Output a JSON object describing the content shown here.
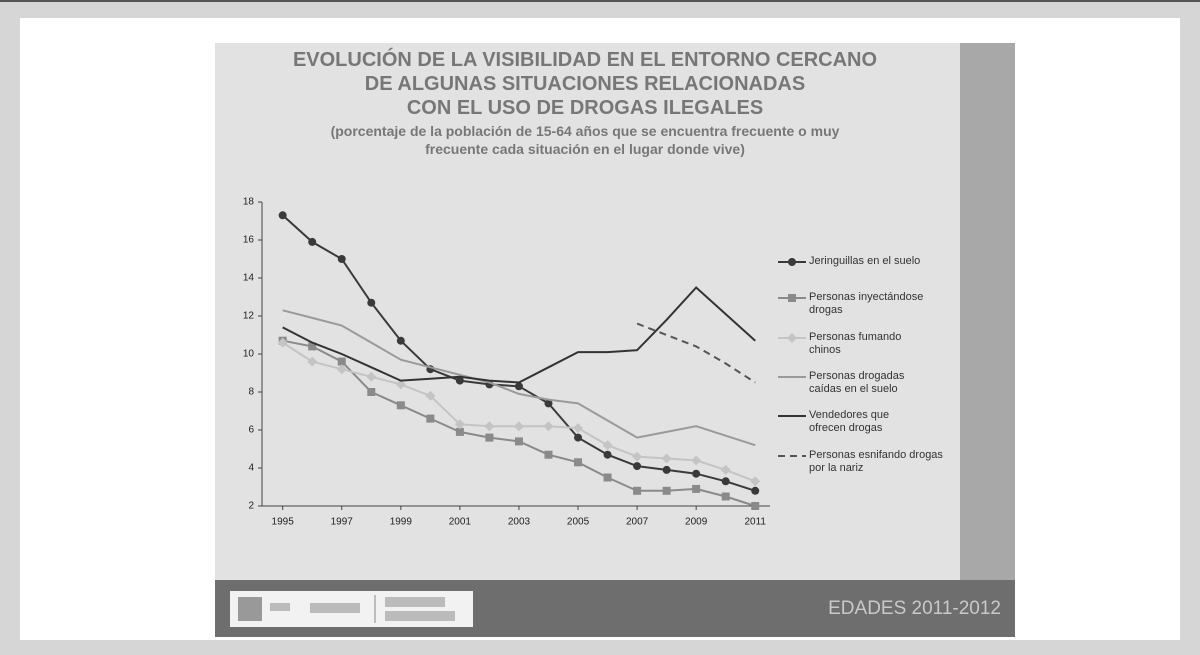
{
  "chart_data": {
    "type": "line",
    "title": [
      "EVOLUCIÓN DE LA VISIBILIDAD EN EL ENTORNO CERCANO",
      "DE ALGUNAS SITUACIONES RELACIONADAS",
      "CON EL USO DE DROGAS ILEGALES"
    ],
    "subtitle": [
      "(porcentaje de la población de 15-64 años que se encuentra frecuente o muy",
      "frecuente cada situación en el lugar donde vive)"
    ],
    "footer": "EDADES 2011-2012",
    "x": [
      1995,
      1996,
      1997,
      1998,
      1999,
      2000,
      2001,
      2002,
      2003,
      2004,
      2005,
      2006,
      2007,
      2008,
      2009,
      2010,
      2011
    ],
    "series": [
      {
        "name": "Jeringuillas en el suelo",
        "color": "#3a3a3a",
        "marker": "circle",
        "values": [
          17.3,
          15.9,
          15.0,
          12.7,
          10.7,
          9.2,
          8.6,
          8.4,
          8.3,
          7.4,
          5.6,
          4.7,
          4.1,
          3.9,
          3.7,
          3.3,
          2.8
        ]
      },
      {
        "name": "Personas inyectándose drogas",
        "color": "#8a8a8a",
        "marker": "square",
        "values": [
          10.7,
          10.4,
          9.6,
          8.0,
          7.3,
          6.6,
          5.9,
          5.6,
          5.4,
          4.7,
          4.3,
          3.5,
          2.8,
          2.8,
          2.9,
          2.5,
          2.0
        ]
      },
      {
        "name": "Personas fumando chinos",
        "color": "#c4c4c4",
        "marker": "diamond",
        "values": [
          10.6,
          9.6,
          9.2,
          8.8,
          8.4,
          7.8,
          6.3,
          6.2,
          6.2,
          6.2,
          6.1,
          5.2,
          4.6,
          4.5,
          4.4,
          3.9,
          3.3
        ]
      },
      {
        "name": "Personas drogadas caídas en el suelo",
        "color": "#9a9a9a",
        "marker": "none",
        "values": [
          12.3,
          11.9,
          11.5,
          10.6,
          9.7,
          9.3,
          8.9,
          8.5,
          7.9,
          7.6,
          7.4,
          6.5,
          5.6,
          5.9,
          6.2,
          5.7,
          5.2
        ]
      },
      {
        "name": "Vendedores que ofrecen drogas",
        "color": "#333333",
        "marker": "none",
        "values": [
          11.4,
          10.6,
          10.0,
          9.3,
          8.6,
          8.7,
          8.8,
          8.6,
          8.5,
          9.3,
          10.1,
          10.1,
          10.2,
          11.8,
          13.5,
          12.1,
          10.7
        ]
      },
      {
        "name": "Personas esnifando drogas por la nariz",
        "color": "#555555",
        "marker": "none",
        "dashed": true,
        "values": [
          null,
          null,
          null,
          null,
          null,
          null,
          null,
          null,
          null,
          null,
          null,
          null,
          11.6,
          11.0,
          10.4,
          9.5,
          8.5
        ]
      }
    ],
    "xlim": [
      1994.3,
      2011.5
    ],
    "xticks": [
      1995,
      1997,
      1999,
      2001,
      2003,
      2005,
      2007,
      2009,
      2011
    ],
    "ylim": [
      2,
      18
    ],
    "yticks": [
      2,
      4,
      6,
      8,
      10,
      12,
      14,
      16,
      18
    ],
    "legend": "right"
  }
}
